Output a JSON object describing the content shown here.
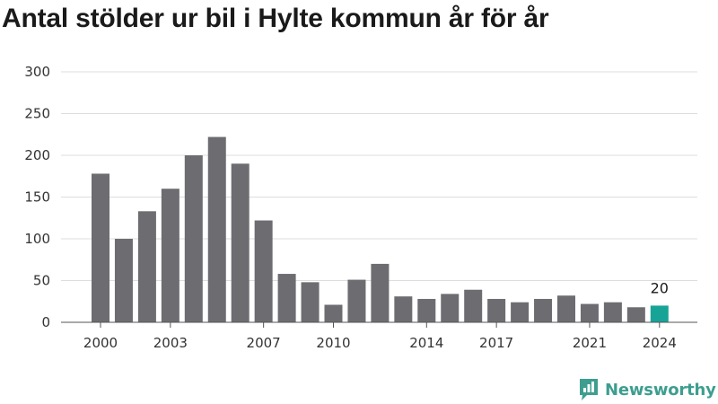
{
  "title": "Antal stölder ur bil i Hylte kommun år för år",
  "brand": {
    "name": "Newsworthy",
    "color": "#3d9e8f",
    "icon": "newsworthy-logo-icon"
  },
  "chart_data": {
    "type": "bar",
    "title": "Antal stölder ur bil i Hylte kommun år för år",
    "xlabel": "",
    "ylabel": "",
    "x": [
      2000,
      2001,
      2002,
      2003,
      2004,
      2005,
      2006,
      2007,
      2008,
      2009,
      2010,
      2011,
      2012,
      2013,
      2014,
      2015,
      2016,
      2017,
      2018,
      2019,
      2020,
      2021,
      2022,
      2023,
      2024
    ],
    "values": [
      178,
      100,
      133,
      160,
      200,
      222,
      190,
      122,
      58,
      48,
      21,
      51,
      70,
      31,
      28,
      34,
      39,
      28,
      24,
      28,
      32,
      22,
      24,
      18,
      20
    ],
    "ylim": [
      0,
      300
    ],
    "yticks": [
      0,
      50,
      100,
      150,
      200,
      250,
      300
    ],
    "xticks": [
      2000,
      2003,
      2007,
      2010,
      2014,
      2017,
      2021,
      2024
    ],
    "highlight": {
      "x": 2024,
      "label": "20"
    },
    "grid": true,
    "colors": {
      "bar": "#6d6c71",
      "highlight": "#17a497",
      "grid": "#dddddd",
      "axis": "#555555"
    }
  }
}
